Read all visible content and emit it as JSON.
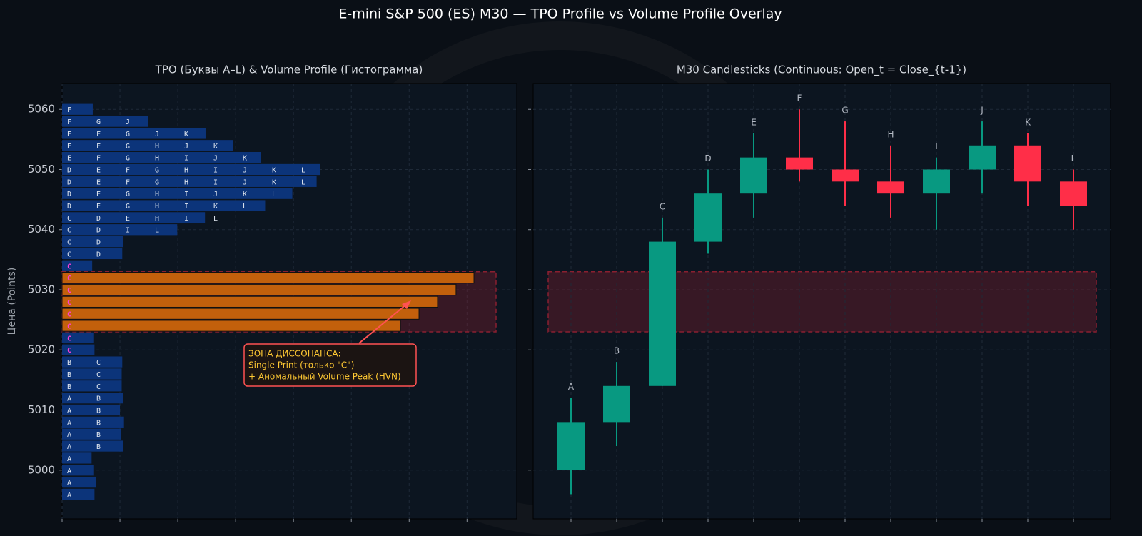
{
  "title": "E-mini S&P 500 (ES) M30 — TPO Profile vs Volume Profile Overlay",
  "chart_data": [
    {
      "type": "tpo_profile",
      "title": "TPO (Буквы A–L) & Volume Profile (Гистограмма)",
      "ylabel": "Цена (Points)",
      "ylim": [
        4991.9,
        5064.3
      ],
      "yticks": [
        5000,
        5010,
        5020,
        5030,
        5040,
        5050,
        5060
      ],
      "xlim": [
        0,
        786
      ],
      "xticks": [
        0,
        100,
        200,
        300,
        400,
        500,
        600,
        700
      ],
      "show_xtick_labels": false,
      "grid": true,
      "bar_color": "#0c347a",
      "hvn_color": "#c2600c",
      "hvn_range": [
        5024,
        5032
      ],
      "letter_color": "#dfe5ee",
      "single_print_color": "#ff3fd8",
      "single_print_range": [
        5020,
        5034
      ],
      "zone": {
        "range": [
          5023,
          5033
        ],
        "color": "#8a1f30"
      },
      "annotation": {
        "lines": [
          "ЗОНА ДИССОНАНСА:",
          "Single Print (только \"C\")",
          "+ Аномальный Volume Peak (HVN)"
        ],
        "color": "#ffc933",
        "border": "#ff5252"
      },
      "rows": [
        {
          "price": 5060,
          "letters": [
            "F"
          ],
          "volume": 53
        },
        {
          "price": 5058,
          "letters": [
            "F",
            "G",
            "J"
          ],
          "volume": 149
        },
        {
          "price": 5056,
          "letters": [
            "E",
            "F",
            "G",
            "J",
            "K"
          ],
          "volume": 248
        },
        {
          "price": 5054,
          "letters": [
            "E",
            "F",
            "G",
            "H",
            "J",
            "K"
          ],
          "volume": 295
        },
        {
          "price": 5052,
          "letters": [
            "E",
            "F",
            "G",
            "H",
            "I",
            "J",
            "K"
          ],
          "volume": 344
        },
        {
          "price": 5050,
          "letters": [
            "D",
            "E",
            "F",
            "G",
            "H",
            "I",
            "J",
            "K",
            "L"
          ],
          "volume": 446
        },
        {
          "price": 5048,
          "letters": [
            "D",
            "E",
            "F",
            "G",
            "H",
            "I",
            "J",
            "K",
            "L"
          ],
          "volume": 440
        },
        {
          "price": 5046,
          "letters": [
            "D",
            "E",
            "G",
            "H",
            "I",
            "J",
            "K",
            "L"
          ],
          "volume": 398
        },
        {
          "price": 5044,
          "letters": [
            "D",
            "E",
            "G",
            "H",
            "I",
            "K",
            "L"
          ],
          "volume": 351
        },
        {
          "price": 5042,
          "letters": [
            "C",
            "D",
            "E",
            "H",
            "I",
            "L"
          ],
          "volume": 247
        },
        {
          "price": 5040,
          "letters": [
            "C",
            "D",
            "I",
            "L"
          ],
          "volume": 199
        },
        {
          "price": 5038,
          "letters": [
            "C",
            "D"
          ],
          "volume": 105
        },
        {
          "price": 5036,
          "letters": [
            "C",
            "D"
          ],
          "volume": 104
        },
        {
          "price": 5034,
          "letters": [
            "C"
          ],
          "volume": 52
        },
        {
          "price": 5032,
          "letters": [
            "C"
          ],
          "volume": 712
        },
        {
          "price": 5030,
          "letters": [
            "C"
          ],
          "volume": 681
        },
        {
          "price": 5028,
          "letters": [
            "C"
          ],
          "volume": 649
        },
        {
          "price": 5026,
          "letters": [
            "C"
          ],
          "volume": 617
        },
        {
          "price": 5024,
          "letters": [
            "C"
          ],
          "volume": 585
        },
        {
          "price": 5022,
          "letters": [
            "C"
          ],
          "volume": 54
        },
        {
          "price": 5020,
          "letters": [
            "C"
          ],
          "volume": 56
        },
        {
          "price": 5018,
          "letters": [
            "B",
            "C"
          ],
          "volume": 104
        },
        {
          "price": 5016,
          "letters": [
            "B",
            "C"
          ],
          "volume": 103
        },
        {
          "price": 5014,
          "letters": [
            "B",
            "C"
          ],
          "volume": 103
        },
        {
          "price": 5012,
          "letters": [
            "A",
            "B"
          ],
          "volume": 105
        },
        {
          "price": 5010,
          "letters": [
            "A",
            "B"
          ],
          "volume": 100
        },
        {
          "price": 5008,
          "letters": [
            "A",
            "B"
          ],
          "volume": 107
        },
        {
          "price": 5006,
          "letters": [
            "A",
            "B"
          ],
          "volume": 102
        },
        {
          "price": 5004,
          "letters": [
            "A",
            "B"
          ],
          "volume": 105
        },
        {
          "price": 5002,
          "letters": [
            "A"
          ],
          "volume": 51
        },
        {
          "price": 5000,
          "letters": [
            "A"
          ],
          "volume": 54
        },
        {
          "price": 4998,
          "letters": [
            "A"
          ],
          "volume": 58
        },
        {
          "price": 4996,
          "letters": [
            "A"
          ],
          "volume": 56
        }
      ]
    },
    {
      "type": "candlestick",
      "title": "M30 Candlesticks (Continuous: Open_t = Close_{t-1})",
      "ylim": [
        4991.9,
        5064.3
      ],
      "yticks": [
        5000,
        5010,
        5020,
        5030,
        5040,
        5050,
        5060
      ],
      "show_ytick_labels": false,
      "grid": true,
      "up_color": "#089981",
      "down_color": "#ff2e48",
      "zone": {
        "range": [
          5023,
          5033
        ],
        "color": "#8a1f30"
      },
      "categories": [
        "A",
        "B",
        "C",
        "D",
        "E",
        "F",
        "G",
        "H",
        "I",
        "J",
        "K",
        "L"
      ],
      "open": [
        5000,
        5008,
        5014,
        5038,
        5046,
        5052,
        5050,
        5048,
        5046,
        5050,
        5054,
        5048
      ],
      "high": [
        5012,
        5018,
        5042,
        5050,
        5056,
        5060,
        5058,
        5054,
        5052,
        5058,
        5056,
        5050
      ],
      "low": [
        4996,
        5004,
        5014,
        5036,
        5042,
        5048,
        5044,
        5042,
        5040,
        5046,
        5044,
        5040
      ],
      "close": [
        5008,
        5014,
        5038,
        5046,
        5052,
        5050,
        5048,
        5046,
        5050,
        5054,
        5048,
        5044
      ]
    }
  ]
}
